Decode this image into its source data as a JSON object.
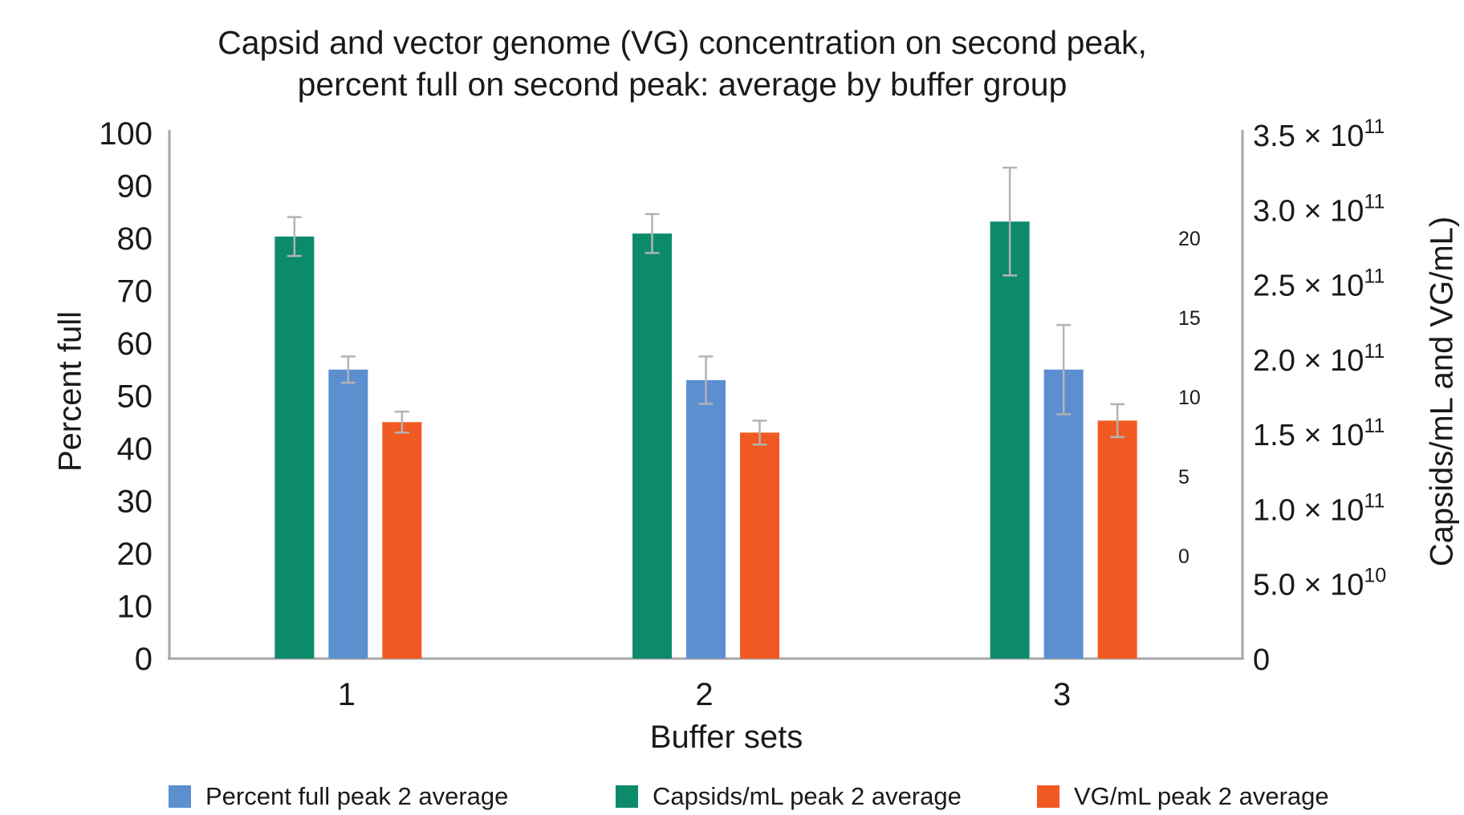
{
  "chart_data": {
    "type": "bar",
    "title_lines": [
      "Capsid and vector genome (VG) concentration on second peak,",
      "percent full on second peak: average by buffer group"
    ],
    "xlabel": "Buffer sets",
    "ylabel_left": "Percent full",
    "ylabel_right": "Capsids/mL and VG/mL)",
    "categories": [
      "1",
      "2",
      "3"
    ],
    "ylim_left": [
      0,
      100
    ],
    "left_ticks": [
      "0",
      "10",
      "20",
      "30",
      "40",
      "50",
      "60",
      "70",
      "80",
      "90",
      "100"
    ],
    "right_ticks": [
      {
        "value": 0,
        "base": "0",
        "exp": ""
      },
      {
        "value": 50000000000.0,
        "base": "5.0 × 10",
        "exp": "10"
      },
      {
        "value": 100000000000.0,
        "base": "1.0 × 10",
        "exp": "11"
      },
      {
        "value": 150000000000.0,
        "base": "1.5 × 10",
        "exp": "11"
      },
      {
        "value": 200000000000.0,
        "base": "2.0 × 10",
        "exp": "11"
      },
      {
        "value": 250000000000.0,
        "base": "2.5 × 10",
        "exp": "11"
      },
      {
        "value": 300000000000.0,
        "base": "3.0 × 10",
        "exp": "11"
      },
      {
        "value": 350000000000.0,
        "base": "3.5 × 10",
        "exp": "11"
      }
    ],
    "inner_ticks": [
      {
        "label": "0",
        "value": 0
      },
      {
        "label": "5",
        "value": 5
      },
      {
        "label": "10",
        "value": 10
      },
      {
        "label": "15",
        "value": 15
      },
      {
        "label": "20",
        "value": 20
      }
    ],
    "series": [
      {
        "name": "Capsids/mL peak 2 average",
        "color": "#0c8b6b",
        "values": [
          282000000000.0,
          284000000000.0,
          292000000000.0
        ],
        "errors": [
          13000000000.0,
          13000000000.0,
          36000000000.0
        ]
      },
      {
        "name": "Percent full peak 2 average",
        "color": "#5b8fd0",
        "values": [
          55,
          53,
          55
        ],
        "errors": [
          2.5,
          4.5,
          8.5
        ]
      },
      {
        "name": "VG/mL peak 2 average",
        "color": "#f05a22",
        "values": [
          158000000000.0,
          151000000000.0,
          159000000000.0
        ],
        "errors": [
          7000000000.0,
          8000000000.0,
          11000000000.0
        ]
      }
    ],
    "legend": [
      {
        "name": "Percent full peak 2 average",
        "color": "#5b8fd0"
      },
      {
        "name": "Capsids/mL peak 2 average",
        "color": "#0c8b6b"
      },
      {
        "name": "VG/mL peak 2 average",
        "color": "#f05a22"
      }
    ],
    "colors": {
      "axis": "#a6a6a6",
      "error_bar": "#b3b3b3",
      "text": "#1a1a1a"
    }
  }
}
